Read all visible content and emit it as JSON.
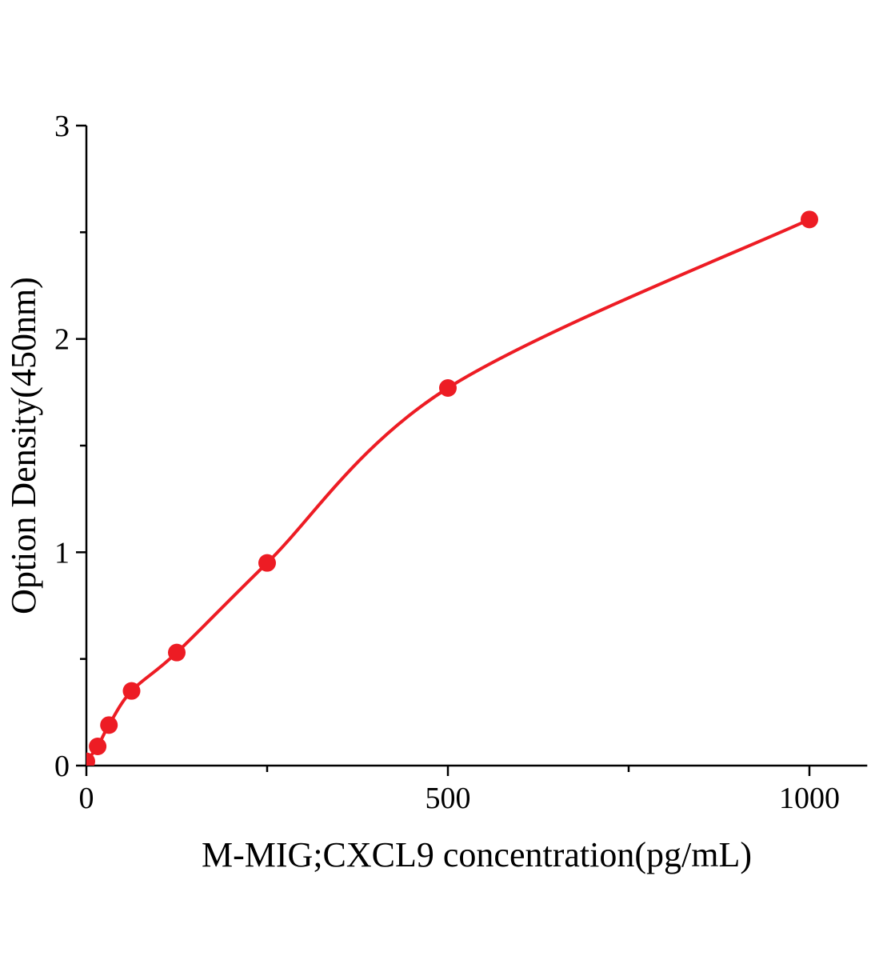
{
  "figure": {
    "kind": "ELISA standard curve",
    "background_color": "#ffffff"
  },
  "chart_data": {
    "type": "scatter",
    "title": "",
    "xlabel": "M-MIG;CXCL9 concentration(pg/mL)",
    "ylabel": "Option Density(450nm)",
    "xlim": [
      0,
      1080
    ],
    "ylim": [
      0,
      3
    ],
    "x_major_ticks": [
      0,
      500,
      1000
    ],
    "x_minor_ticks": [
      250,
      750
    ],
    "y_major_ticks": [
      0,
      1,
      2,
      3
    ],
    "y_minor_ticks": [
      0.5,
      1.5,
      2.5
    ],
    "series": [
      {
        "name": "standard-curve-points",
        "points": [
          [
            0,
            0.02
          ],
          [
            15.6,
            0.09
          ],
          [
            31.2,
            0.19
          ],
          [
            62.5,
            0.35
          ],
          [
            125,
            0.53
          ],
          [
            250,
            0.95
          ],
          [
            500,
            1.77
          ],
          [
            1000,
            2.56
          ]
        ]
      }
    ],
    "curve": "smooth fit through points",
    "point_color": "#ed1c24",
    "curve_color": "#ed1c24",
    "axis_color": "#000000",
    "grid": false,
    "legend_position": "none"
  }
}
